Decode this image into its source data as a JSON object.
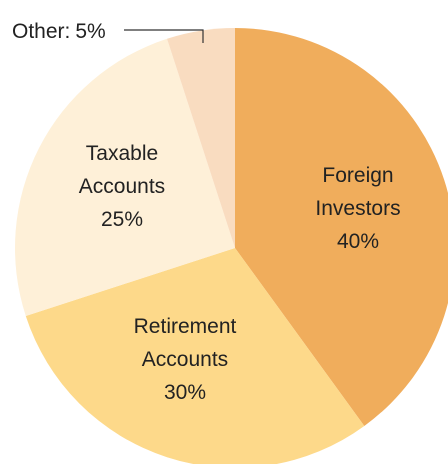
{
  "chart_data": {
    "type": "pie",
    "categories": [
      "Foreign Investors",
      "Retirement Accounts",
      "Taxable Accounts",
      "Other:"
    ],
    "values": [
      40,
      30,
      25,
      5
    ],
    "value_labels": [
      "40%",
      "30%",
      "25%",
      "5%"
    ],
    "colors": [
      "#f0ad5c",
      "#fdd98a",
      "#fef0d8",
      "#f9dcc0"
    ]
  }
}
